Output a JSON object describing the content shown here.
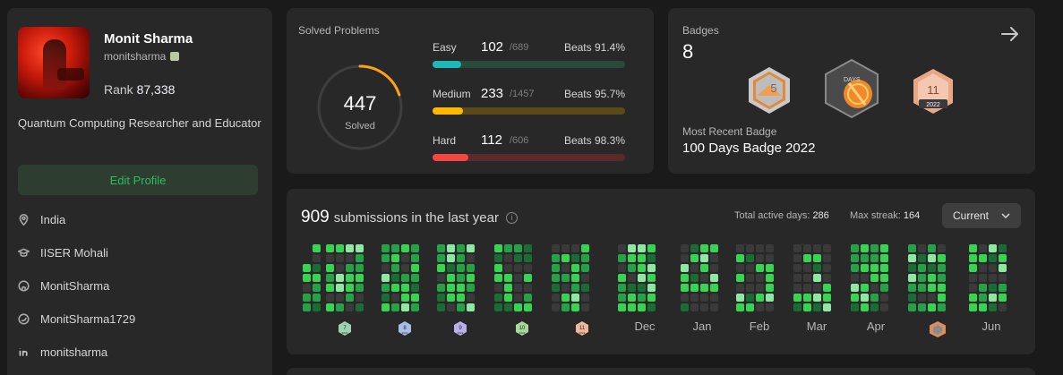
{
  "profile": {
    "name": "Monit Sharma",
    "handle": "monitsharma",
    "rank_label": "Rank",
    "rank_value": "87,338",
    "bio": "Quantum Computing Researcher and Educator",
    "edit_label": "Edit Profile",
    "info": [
      {
        "icon": "location-icon",
        "text": "India"
      },
      {
        "icon": "graduation-cap-icon",
        "text": "IISER Mohali"
      },
      {
        "icon": "github-icon",
        "text": "MonitSharma"
      },
      {
        "icon": "twitter-icon",
        "text": "MonitSharma1729"
      },
      {
        "icon": "linkedin-icon",
        "text": "monitsharma"
      }
    ]
  },
  "solved": {
    "title": "Solved Problems",
    "total": "447",
    "total_label": "Solved",
    "ring_progress": 0.2,
    "difficulties": [
      {
        "name": "Easy",
        "count": "102",
        "total": "/689",
        "beats_label": "Beats",
        "beats": "91.4%",
        "fraction": 0.148,
        "color": "#1cb8b8",
        "track": "#2a4a3a"
      },
      {
        "name": "Medium",
        "count": "233",
        "total": "/1457",
        "beats_label": "Beats",
        "beats": "95.7%",
        "fraction": 0.16,
        "color": "#ffb800",
        "track": "#5a4a1a"
      },
      {
        "name": "Hard",
        "count": "112",
        "total": "/606",
        "beats_label": "Beats",
        "beats": "98.3%",
        "fraction": 0.185,
        "color": "#ef4743",
        "track": "#5a2a2a"
      }
    ]
  },
  "badges": {
    "title": "Badges",
    "count": "8",
    "recent_label": "Most Recent Badge",
    "recent_name": "100 Days Badge 2022",
    "items": [
      {
        "icon": "5-badge-icon",
        "text": "5"
      },
      {
        "icon": "days-badge-icon",
        "text": "DAYS"
      },
      {
        "icon": "11-2022-badge-icon",
        "text": "11",
        "year": "2022"
      }
    ]
  },
  "submissions": {
    "count": "909",
    "label": "submissions in the last year",
    "active_label": "Total active days:",
    "active_value": "286",
    "streak_label": "Max streak:",
    "streak_value": "164",
    "selector": "Current",
    "months": [
      "Dec",
      "Jan",
      "Feb",
      "Mar",
      "Apr",
      "Jun"
    ],
    "month_badges": [
      {
        "text": "7",
        "year": "2022",
        "color": "#9fd0b8"
      },
      {
        "text": "8",
        "year": "2022",
        "color": "#a8bde8"
      },
      {
        "text": "9",
        "year": "2022",
        "color": "#b8b0e8"
      },
      {
        "text": "10",
        "year": "2022",
        "color": "#a8d89a"
      },
      {
        "text": "11",
        "year": "2022",
        "color": "#f0b89a"
      }
    ]
  },
  "colors": {
    "accent_green": "#2cbb5d",
    "background": "#1a1a1a",
    "card": "#282828"
  }
}
